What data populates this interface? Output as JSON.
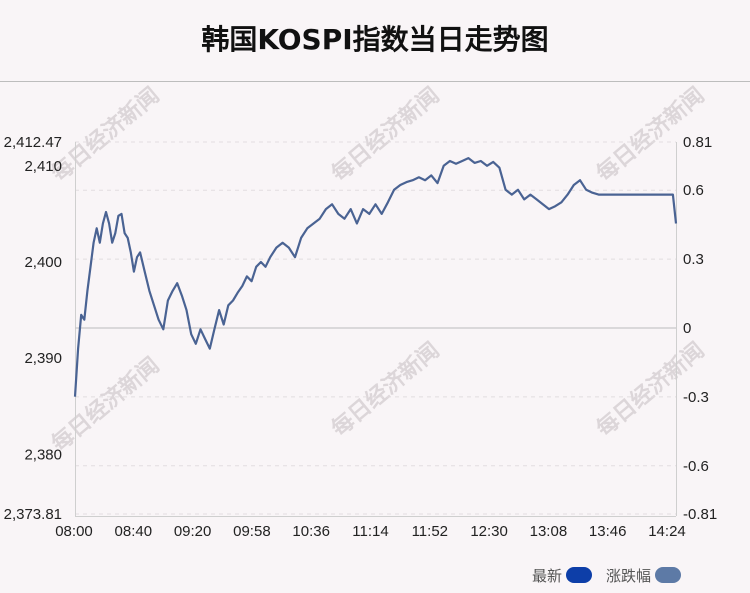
{
  "page": {
    "title": "韩国KOSPI指数当日走势图"
  },
  "watermark": "每日经济新闻",
  "legend": [
    {
      "label": "最新",
      "color": "#0d3ea8"
    },
    {
      "label": "涨跌幅",
      "color": "#5d7aa6"
    }
  ],
  "chart_data": {
    "type": "line",
    "title": "韩国KOSPI指数当日走势图",
    "line_color": "#4a6393",
    "x_ticks": [
      "08:00",
      "08:40",
      "09:20",
      "09:58",
      "10:36",
      "11:14",
      "11:52",
      "12:30",
      "13:08",
      "13:46",
      "14:24"
    ],
    "left_axis": {
      "ylim": [
        2373.81,
        2412.47
      ],
      "ticks": [
        "2,412.47",
        "2,410",
        "2,400",
        "2,390",
        "2,380",
        "2,373.81"
      ],
      "tick_values": [
        2412.47,
        2410,
        2400,
        2390,
        2380,
        2373.81
      ]
    },
    "right_axis": {
      "ylim": [
        -0.81,
        0.81
      ],
      "ticks": [
        "0.81",
        "0.6",
        "0.3",
        "0",
        "-0.3",
        "-0.6",
        "-0.81"
      ],
      "tick_values": [
        0.81,
        0.6,
        0.3,
        0,
        -0.3,
        -0.6,
        -0.81
      ]
    },
    "baseline": 2393.14,
    "x_range": [
      0,
      388
    ],
    "series": [
      {
        "x": [
          0,
          2,
          4,
          6,
          8,
          10,
          12,
          14,
          16,
          18,
          20,
          22,
          24,
          26,
          28,
          30,
          32,
          34,
          36,
          38,
          40,
          42,
          45,
          48,
          51,
          54,
          57,
          60,
          63,
          66,
          69,
          72,
          75,
          78,
          81,
          84,
          87,
          90,
          93,
          96,
          99,
          102,
          105,
          108,
          111,
          114,
          117,
          120,
          123,
          126,
          130,
          134,
          138,
          142,
          146,
          150,
          154,
          158,
          162,
          166,
          170,
          174,
          178,
          182,
          186,
          190,
          194,
          198,
          202,
          206,
          210,
          214,
          218,
          222,
          226,
          230,
          234,
          238,
          242,
          246,
          250,
          254,
          258,
          262,
          266,
          270,
          274,
          278,
          282,
          286,
          290,
          294,
          298,
          302,
          306,
          310,
          314,
          318,
          322,
          326,
          330,
          334,
          338,
          342,
          346,
          350,
          354,
          358,
          362,
          366,
          370,
          374,
          378,
          382,
          386,
          388
        ],
        "y": [
          2386.0,
          2391.0,
          2394.5,
          2394.0,
          2397.0,
          2399.5,
          2402.0,
          2403.5,
          2402.0,
          2404.0,
          2405.2,
          2404.0,
          2402.0,
          2403.0,
          2404.8,
          2405.0,
          2403.0,
          2402.5,
          2401.0,
          2399.0,
          2400.5,
          2401.0,
          2399.0,
          2397.0,
          2395.5,
          2394.0,
          2393.0,
          2396.0,
          2397.0,
          2397.8,
          2396.5,
          2395.0,
          2392.5,
          2391.5,
          2393.0,
          2392.0,
          2391.0,
          2393.0,
          2395.0,
          2393.5,
          2395.5,
          2396.0,
          2396.8,
          2397.5,
          2398.5,
          2398.0,
          2399.5,
          2400.0,
          2399.5,
          2400.5,
          2401.5,
          2402.0,
          2401.5,
          2400.5,
          2402.5,
          2403.5,
          2404.0,
          2404.5,
          2405.5,
          2406.0,
          2405.0,
          2404.5,
          2405.5,
          2404.0,
          2405.5,
          2405.0,
          2406.0,
          2405.0,
          2406.2,
          2407.5,
          2408.0,
          2408.3,
          2408.5,
          2408.8,
          2408.5,
          2409.0,
          2408.2,
          2410.0,
          2410.5,
          2410.2,
          2410.5,
          2410.8,
          2410.3,
          2410.5,
          2410.0,
          2410.4,
          2409.8,
          2407.5,
          2407.0,
          2407.5,
          2406.5,
          2407.0,
          2406.5,
          2406.0,
          2405.5,
          2405.8,
          2406.2,
          2407.0,
          2408.0,
          2408.5,
          2407.5,
          2407.2,
          2407.0,
          2407.0,
          2407.0,
          2407.0,
          2407.0,
          2407.0,
          2407.0,
          2407.0,
          2407.0,
          2407.0,
          2407.0,
          2407.0,
          2407.0,
          2404.0
        ]
      }
    ]
  }
}
